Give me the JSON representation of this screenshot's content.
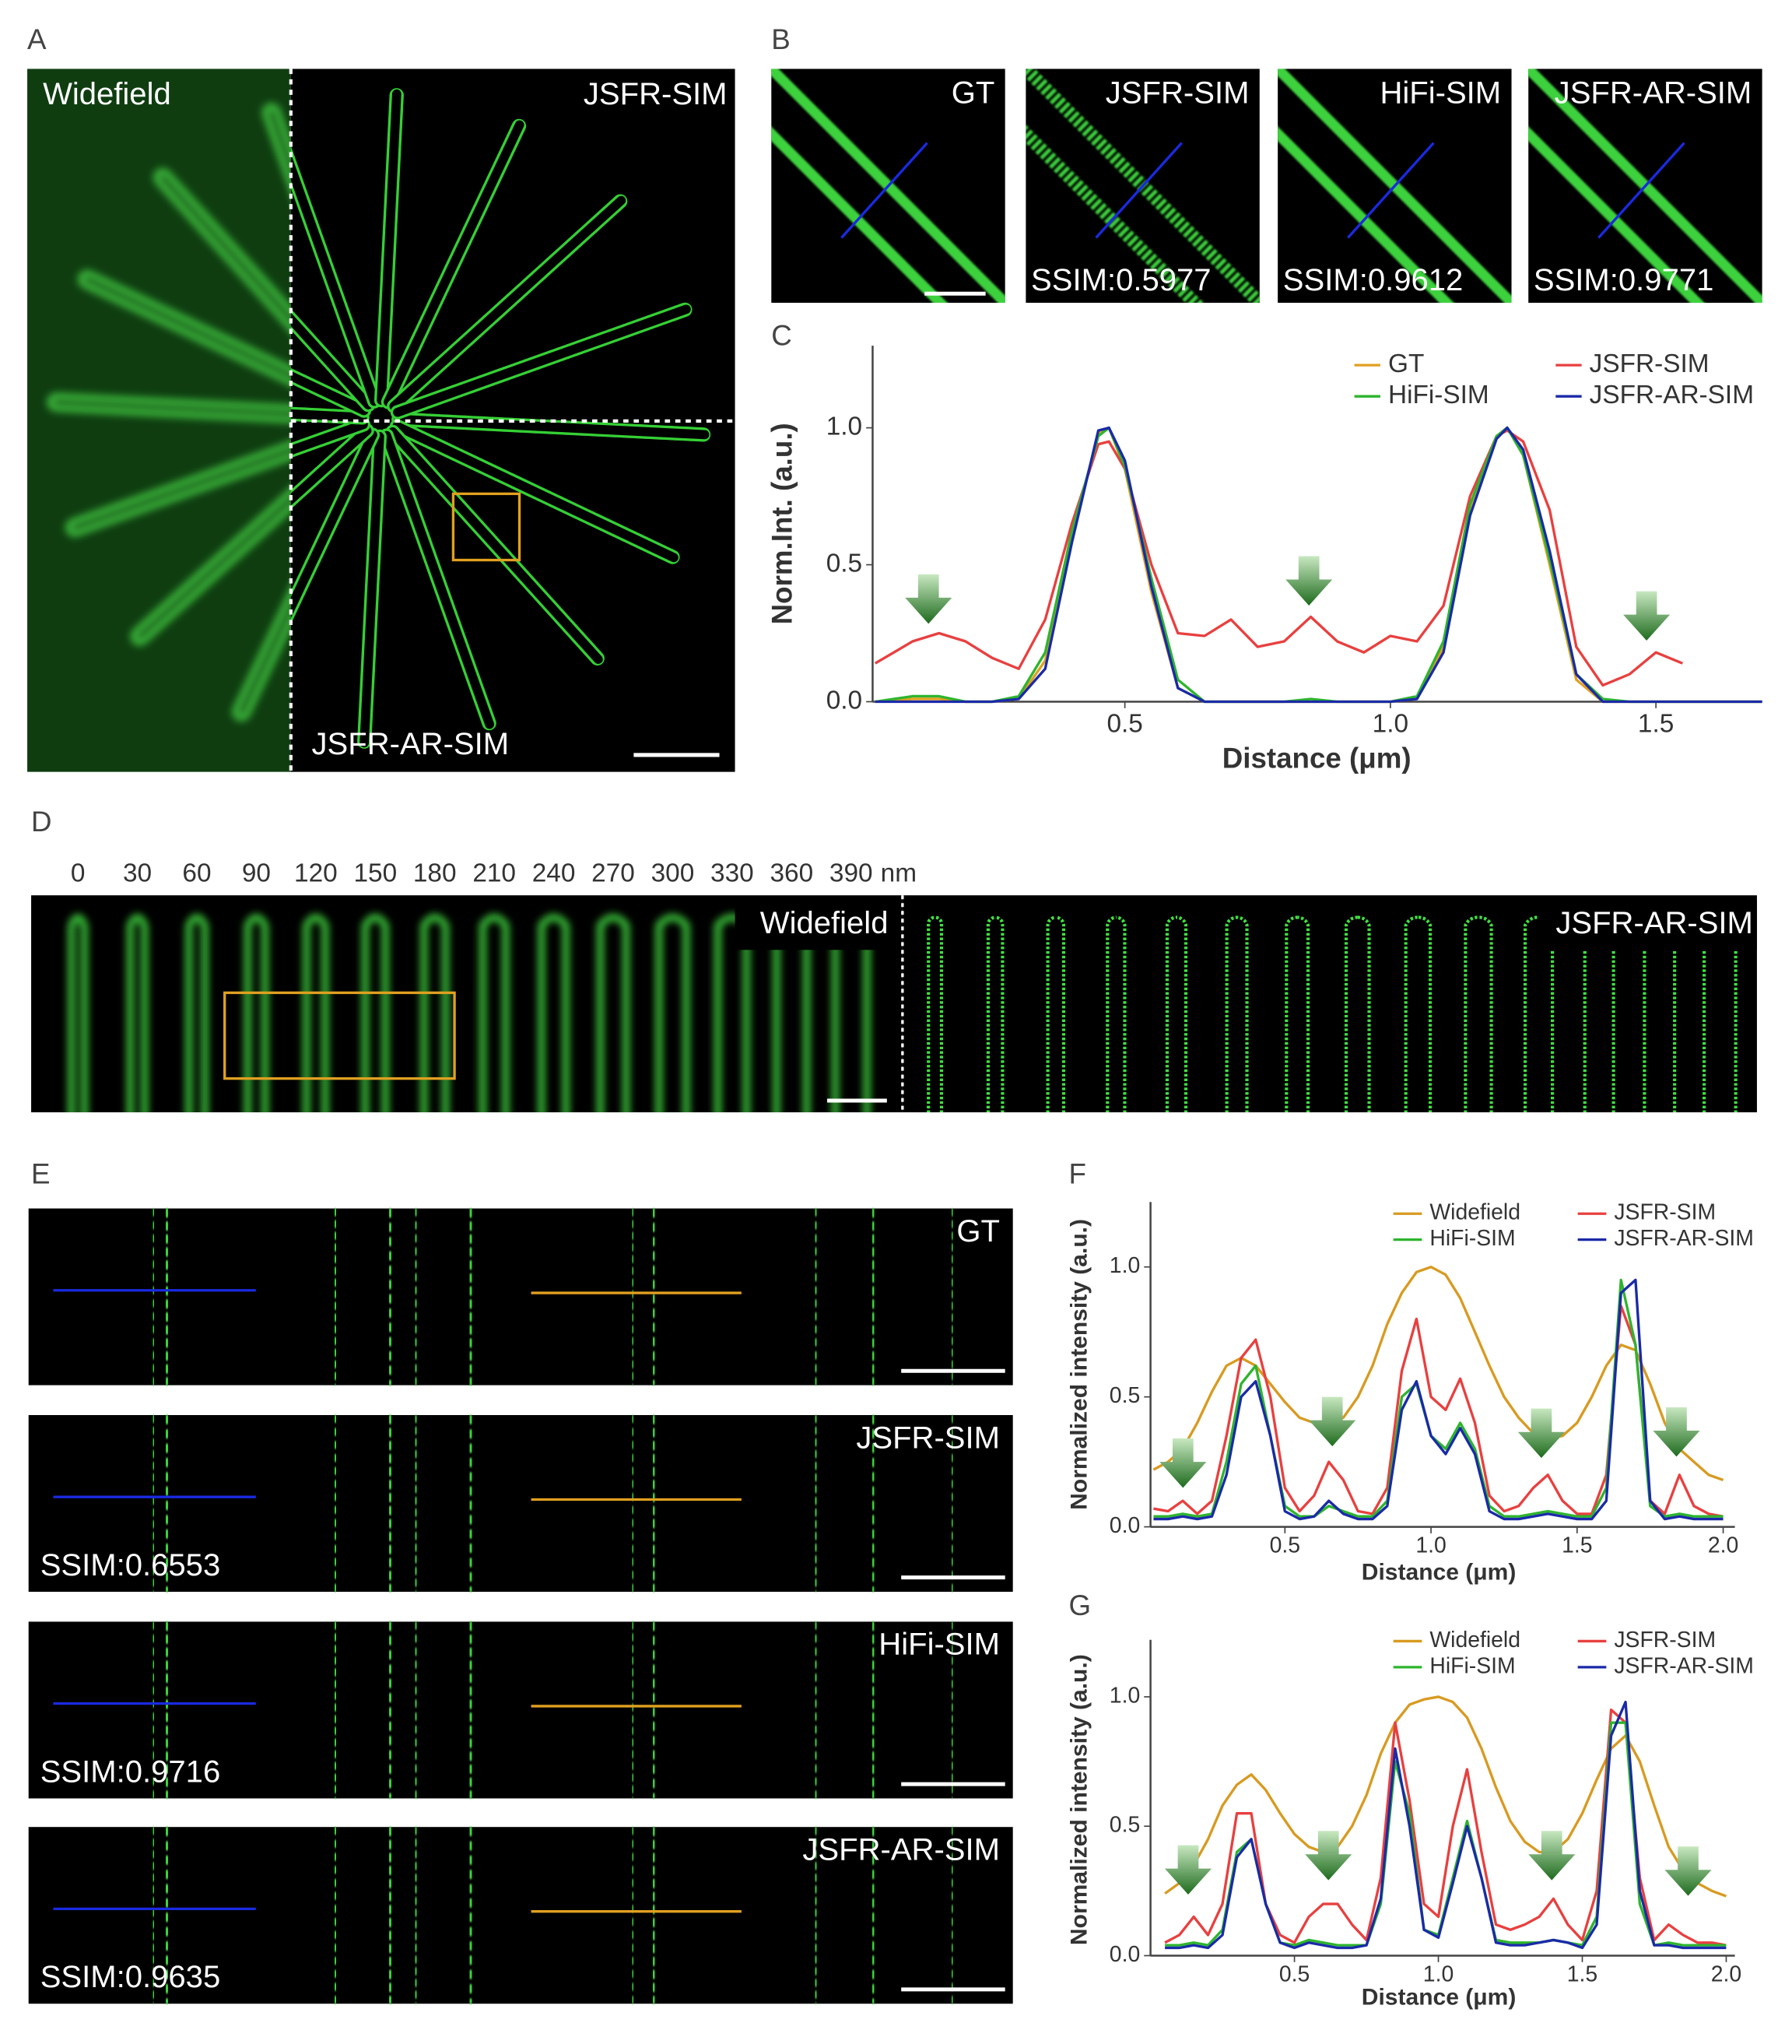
{
  "figure": {
    "panel_labels": [
      "A",
      "B",
      "C",
      "D",
      "E",
      "F",
      "G"
    ],
    "A": {
      "labels": [
        "Widefield",
        "JSFR-SIM",
        "JSFR-AR-SIM"
      ]
    },
    "B": {
      "tiles": [
        {
          "name": "GT"
        },
        {
          "name": "JSFR-SIM",
          "ssim": "SSIM:0.5977"
        },
        {
          "name": "HiFi-SIM",
          "ssim": "SSIM:0.9612"
        },
        {
          "name": "JSFR-AR-SIM",
          "ssim": "SSIM:0.9771"
        }
      ]
    },
    "D": {
      "ticks": [
        0,
        30,
        60,
        90,
        120,
        150,
        180,
        210,
        240,
        270,
        300,
        330,
        360,
        390
      ],
      "unit": "nm",
      "labels": [
        "Widefield",
        "JSFR-AR-SIM"
      ]
    },
    "E": {
      "rows": [
        {
          "name": "GT"
        },
        {
          "name": "JSFR-SIM",
          "ssim": "SSIM:0.6553"
        },
        {
          "name": "HiFi-SIM",
          "ssim": "SSIM:0.9716"
        },
        {
          "name": "JSFR-AR-SIM",
          "ssim": "SSIM:0.9635"
        }
      ]
    }
  },
  "chart_data": [
    {
      "type": "line",
      "xlabel": "Distance (μm)",
      "ylabel": "Norm.Int. (a.u.)",
      "x": [
        0.03,
        0.1,
        0.15,
        0.2,
        0.25,
        0.3,
        0.35,
        0.4,
        0.45,
        0.47,
        0.5,
        0.55,
        0.6,
        0.65,
        0.7,
        0.75,
        0.8,
        0.85,
        0.9,
        0.95,
        1.0,
        1.05,
        1.1,
        1.15,
        1.2,
        1.22,
        1.25,
        1.3,
        1.35,
        1.4,
        1.45,
        1.5,
        1.55,
        1.6,
        1.7
      ],
      "series": [
        {
          "name": "GT",
          "color": "#e0a020",
          "values": [
            0,
            0.01,
            0.01,
            0,
            0,
            0.01,
            0.15,
            0.6,
            0.98,
            1.0,
            0.85,
            0.4,
            0.05,
            0,
            0,
            0,
            0,
            0,
            0,
            0,
            0,
            0.01,
            0.2,
            0.7,
            0.97,
            1.0,
            0.9,
            0.5,
            0.08,
            0,
            0,
            0,
            0,
            0,
            0
          ]
        },
        {
          "name": "JSFR-SIM",
          "color": "#e8403f",
          "values": [
            0.14,
            0.22,
            0.25,
            0.22,
            0.16,
            0.12,
            0.3,
            0.65,
            0.94,
            0.95,
            0.85,
            0.5,
            0.25,
            0.24,
            0.3,
            0.2,
            0.22,
            0.31,
            0.22,
            0.18,
            0.24,
            0.22,
            0.35,
            0.75,
            0.97,
            0.99,
            0.95,
            0.7,
            0.2,
            0.06,
            0.1,
            0.18,
            0.14,
            null,
            null
          ]
        },
        {
          "name": "HiFi-SIM",
          "color": "#2db52d",
          "values": [
            0,
            0.02,
            0.02,
            0,
            0,
            0.02,
            0.18,
            0.62,
            0.97,
            1.0,
            0.86,
            0.45,
            0.08,
            0,
            0,
            0,
            0,
            0.01,
            0,
            0,
            0,
            0.02,
            0.22,
            0.72,
            0.97,
            1.0,
            0.9,
            0.52,
            0.1,
            0.01,
            0,
            0,
            0,
            0,
            0
          ]
        },
        {
          "name": "JSFR-AR-SIM",
          "color": "#1a2aa8",
          "values": [
            0,
            0,
            0,
            0,
            0,
            0.01,
            0.12,
            0.58,
            0.99,
            1.0,
            0.88,
            0.42,
            0.05,
            0,
            0,
            0,
            0,
            0,
            0,
            0,
            0,
            0.01,
            0.18,
            0.68,
            0.96,
            1.0,
            0.92,
            0.55,
            0.1,
            0,
            0,
            0,
            0,
            0,
            0
          ]
        }
      ],
      "xlim": [
        0.025,
        1.7
      ],
      "ylim": [
        0,
        1.3
      ],
      "xticks": [
        0.5,
        {
          "value": 1,
          "label": "1.0"
        },
        1.5
      ],
      "yticks": [
        {
          "value": 0,
          "label": "0.0"
        },
        0.5,
        {
          "value": 1,
          "label": "1.0"
        }
      ]
    },
    {
      "type": "line",
      "xlabel": "Distance (μm)",
      "ylabel": "Normalized intensity (a.u.)",
      "x": [
        0.05,
        0.1,
        0.15,
        0.2,
        0.25,
        0.3,
        0.35,
        0.4,
        0.45,
        0.5,
        0.55,
        0.6,
        0.65,
        0.7,
        0.75,
        0.8,
        0.85,
        0.9,
        0.95,
        1.0,
        1.05,
        1.1,
        1.15,
        1.2,
        1.25,
        1.3,
        1.35,
        1.4,
        1.45,
        1.5,
        1.55,
        1.6,
        1.65,
        1.7,
        1.75,
        1.8,
        1.85,
        1.9,
        1.95,
        2.0
      ],
      "series": [
        {
          "name": "Widefield",
          "color": "#d89a20",
          "values": [
            0.22,
            0.25,
            0.3,
            0.4,
            0.52,
            0.62,
            0.65,
            0.62,
            0.55,
            0.48,
            0.42,
            0.4,
            0.4,
            0.42,
            0.5,
            0.62,
            0.78,
            0.9,
            0.98,
            1.0,
            0.97,
            0.88,
            0.75,
            0.62,
            0.5,
            0.42,
            0.36,
            0.34,
            0.35,
            0.4,
            0.5,
            0.62,
            0.7,
            0.68,
            0.55,
            0.4,
            0.3,
            0.25,
            0.2,
            0.18
          ]
        },
        {
          "name": "JSFR-SIM",
          "color": "#e8403f",
          "values": [
            0.07,
            0.06,
            0.1,
            0.05,
            0.1,
            0.35,
            0.65,
            0.72,
            0.5,
            0.15,
            0.06,
            0.12,
            0.25,
            0.18,
            0.06,
            0.05,
            0.15,
            0.6,
            0.8,
            0.5,
            0.45,
            0.57,
            0.4,
            0.12,
            0.06,
            0.08,
            0.15,
            0.2,
            0.1,
            0.05,
            0.05,
            0.2,
            0.85,
            0.7,
            0.1,
            0.05,
            0.2,
            0.08,
            0.05,
            0.04
          ]
        },
        {
          "name": "HiFi-SIM",
          "color": "#2db52d",
          "values": [
            0.04,
            0.04,
            0.05,
            0.04,
            0.05,
            0.25,
            0.55,
            0.62,
            0.35,
            0.08,
            0.04,
            0.04,
            0.08,
            0.06,
            0.04,
            0.04,
            0.1,
            0.5,
            0.55,
            0.35,
            0.3,
            0.4,
            0.3,
            0.08,
            0.04,
            0.04,
            0.05,
            0.06,
            0.05,
            0.04,
            0.04,
            0.15,
            0.95,
            0.7,
            0.08,
            0.04,
            0.05,
            0.04,
            0.04,
            0.04
          ]
        },
        {
          "name": "JSFR-AR-SIM",
          "color": "#1a2aa8",
          "values": [
            0.03,
            0.03,
            0.04,
            0.03,
            0.04,
            0.2,
            0.5,
            0.56,
            0.35,
            0.06,
            0.03,
            0.04,
            0.1,
            0.05,
            0.03,
            0.03,
            0.08,
            0.45,
            0.56,
            0.35,
            0.28,
            0.38,
            0.28,
            0.06,
            0.03,
            0.03,
            0.04,
            0.05,
            0.04,
            0.03,
            0.03,
            0.1,
            0.9,
            0.95,
            0.1,
            0.03,
            0.04,
            0.03,
            0.03,
            0.03
          ]
        }
      ],
      "xlim": [
        0.04,
        2.04
      ],
      "ylim": [
        0,
        1.25
      ],
      "xticks": [
        0.5,
        {
          "value": 1,
          "label": "1.0"
        },
        1.5,
        {
          "value": 2,
          "label": "2.0"
        }
      ],
      "yticks": [
        {
          "value": 0,
          "label": "0.0"
        },
        0.5,
        {
          "value": 1,
          "label": "1.0"
        }
      ]
    },
    {
      "type": "line",
      "xlabel": "Distance (μm)",
      "ylabel": "Normalized intensity (a.u.)",
      "x": [
        0.05,
        0.1,
        0.15,
        0.2,
        0.25,
        0.3,
        0.35,
        0.4,
        0.45,
        0.5,
        0.55,
        0.6,
        0.65,
        0.7,
        0.75,
        0.8,
        0.85,
        0.9,
        0.95,
        1.0,
        1.05,
        1.1,
        1.15,
        1.2,
        1.25,
        1.3,
        1.35,
        1.4,
        1.45,
        1.5,
        1.55,
        1.6,
        1.65,
        1.7,
        1.75,
        1.8,
        1.85,
        1.9,
        1.95,
        2.0
      ],
      "series": [
        {
          "name": "Widefield",
          "color": "#d89a20",
          "values": [
            0.24,
            0.28,
            0.35,
            0.45,
            0.58,
            0.66,
            0.7,
            0.64,
            0.55,
            0.47,
            0.42,
            0.4,
            0.42,
            0.5,
            0.62,
            0.78,
            0.9,
            0.97,
            0.99,
            1.0,
            0.98,
            0.92,
            0.8,
            0.65,
            0.52,
            0.44,
            0.4,
            0.4,
            0.45,
            0.55,
            0.68,
            0.8,
            0.85,
            0.75,
            0.58,
            0.42,
            0.33,
            0.28,
            0.25,
            0.23
          ]
        },
        {
          "name": "JSFR-SIM",
          "color": "#e8403f",
          "values": [
            0.05,
            0.08,
            0.15,
            0.08,
            0.2,
            0.55,
            0.55,
            0.2,
            0.08,
            0.05,
            0.15,
            0.2,
            0.2,
            0.12,
            0.06,
            0.3,
            0.9,
            0.6,
            0.2,
            0.15,
            0.5,
            0.72,
            0.4,
            0.12,
            0.1,
            0.12,
            0.15,
            0.22,
            0.12,
            0.06,
            0.25,
            0.95,
            0.9,
            0.3,
            0.06,
            0.12,
            0.08,
            0.05,
            0.05,
            0.04
          ]
        },
        {
          "name": "HiFi-SIM",
          "color": "#2db52d",
          "values": [
            0.04,
            0.04,
            0.05,
            0.04,
            0.1,
            0.4,
            0.45,
            0.2,
            0.05,
            0.04,
            0.06,
            0.05,
            0.04,
            0.04,
            0.04,
            0.2,
            0.75,
            0.55,
            0.1,
            0.08,
            0.3,
            0.52,
            0.3,
            0.06,
            0.05,
            0.05,
            0.05,
            0.06,
            0.05,
            0.04,
            0.15,
            0.9,
            0.9,
            0.2,
            0.04,
            0.05,
            0.04,
            0.04,
            0.04,
            0.04
          ]
        },
        {
          "name": "JSFR-AR-SIM",
          "color": "#1a2aa8",
          "values": [
            0.03,
            0.03,
            0.04,
            0.03,
            0.08,
            0.38,
            0.45,
            0.2,
            0.05,
            0.03,
            0.05,
            0.04,
            0.03,
            0.03,
            0.04,
            0.22,
            0.8,
            0.5,
            0.1,
            0.07,
            0.28,
            0.5,
            0.3,
            0.05,
            0.04,
            0.04,
            0.05,
            0.06,
            0.05,
            0.03,
            0.12,
            0.85,
            0.98,
            0.25,
            0.04,
            0.04,
            0.03,
            0.03,
            0.03,
            0.03
          ]
        }
      ],
      "xlim": [
        0,
        2.03
      ],
      "ylim": [
        0,
        1.22
      ],
      "xticks": [
        0.5,
        {
          "value": 1,
          "label": "1.0"
        },
        1.5,
        {
          "value": 2,
          "label": "2.0"
        }
      ],
      "yticks": [
        {
          "value": 0,
          "label": "0.0"
        },
        0.5,
        {
          "value": 1,
          "label": "1.0"
        }
      ]
    }
  ]
}
